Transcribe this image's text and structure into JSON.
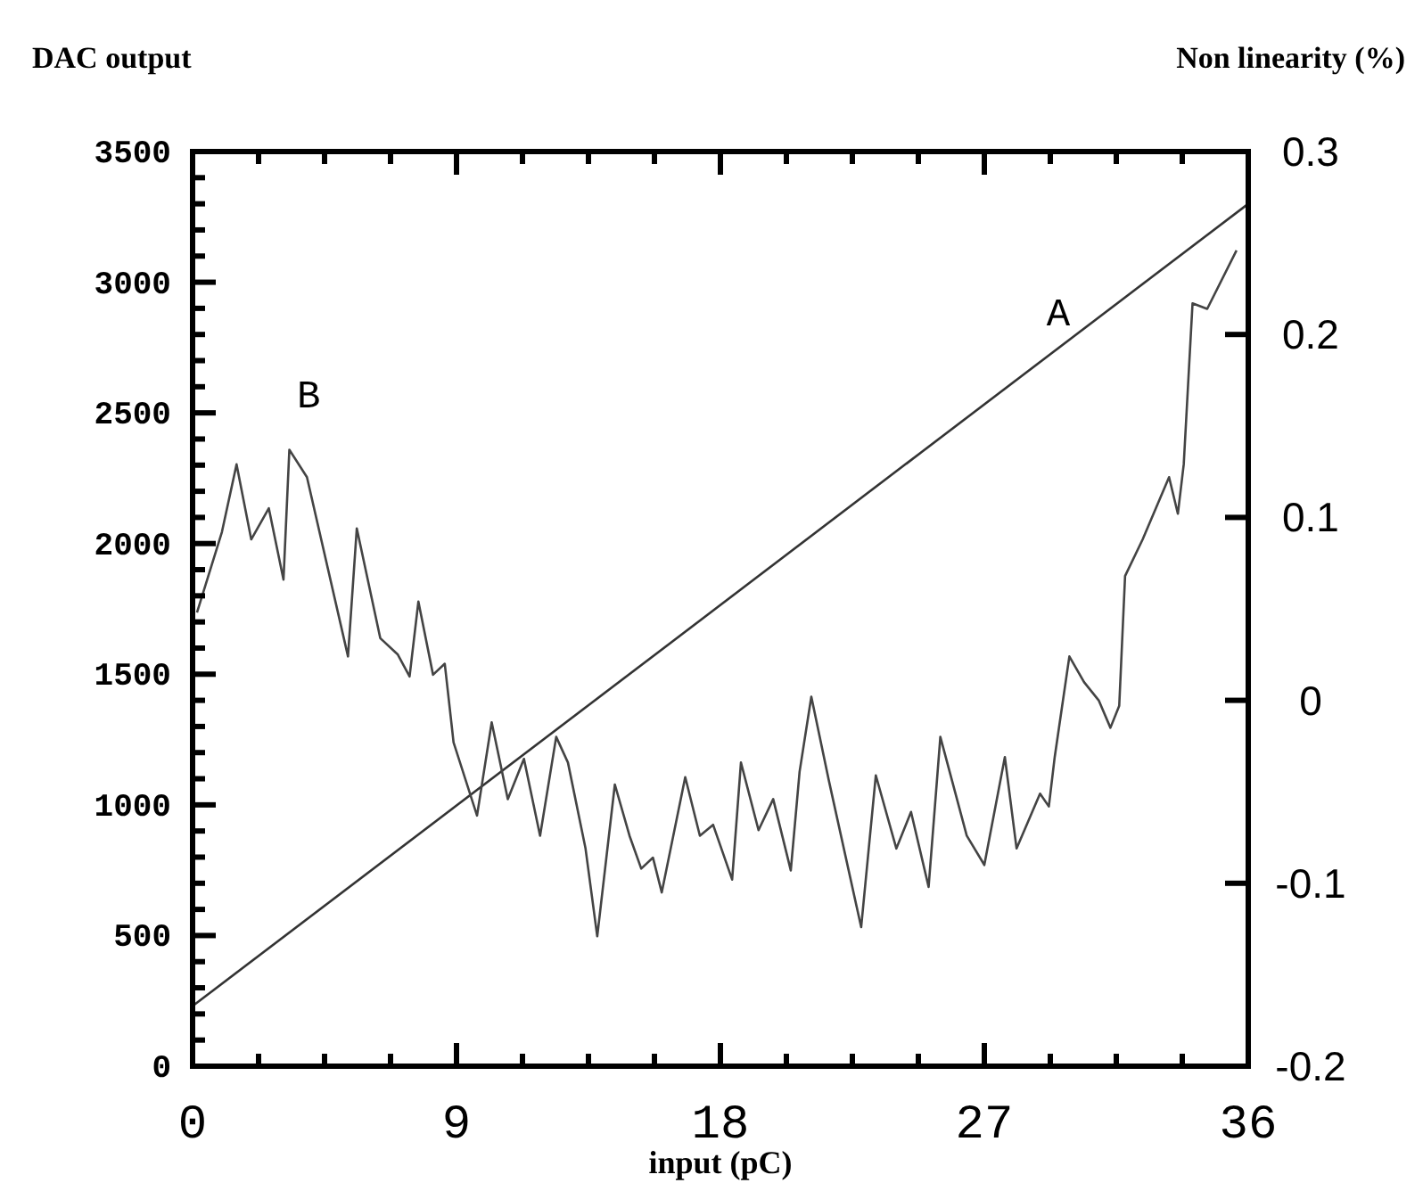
{
  "chart_data": {
    "type": "line",
    "ylabel": "DAC output",
    "y2label": "Non linearity (%)",
    "xlabel": "input (pC)",
    "xlim": [
      0,
      36
    ],
    "xticks": [
      0,
      {
        "value": 2.25,
        "label": null
      },
      {
        "value": 4.5,
        "label": null
      },
      {
        "value": 6.75,
        "label": null
      },
      9,
      {
        "value": 11.25,
        "label": null
      },
      {
        "value": 13.5,
        "label": null
      },
      {
        "value": 15.75,
        "label": null
      },
      18,
      {
        "value": 20.25,
        "label": null
      },
      {
        "value": 22.5,
        "label": null
      },
      {
        "value": 24.75,
        "label": null
      },
      27,
      {
        "value": 29.25,
        "label": null
      },
      {
        "value": 31.5,
        "label": null
      },
      {
        "value": 33.75,
        "label": null
      },
      36
    ],
    "ylim": [
      0,
      3500
    ],
    "yticks": [
      0,
      {
        "value": 100,
        "label": null
      },
      {
        "value": 200,
        "label": null
      },
      {
        "value": 300,
        "label": null
      },
      {
        "value": 400,
        "label": null
      },
      500,
      {
        "value": 600,
        "label": null
      },
      {
        "value": 700,
        "label": null
      },
      {
        "value": 800,
        "label": null
      },
      {
        "value": 900,
        "label": null
      },
      1000,
      {
        "value": 1100,
        "label": null
      },
      {
        "value": 1200,
        "label": null
      },
      {
        "value": 1300,
        "label": null
      },
      {
        "value": 1400,
        "label": null
      },
      1500,
      {
        "value": 1600,
        "label": null
      },
      {
        "value": 1700,
        "label": null
      },
      {
        "value": 1800,
        "label": null
      },
      {
        "value": 1900,
        "label": null
      },
      2000,
      {
        "value": 2100,
        "label": null
      },
      {
        "value": 2200,
        "label": null
      },
      {
        "value": 2300,
        "label": null
      },
      {
        "value": 2400,
        "label": null
      },
      2500,
      {
        "value": 2600,
        "label": null
      },
      {
        "value": 2700,
        "label": null
      },
      {
        "value": 2800,
        "label": null
      },
      {
        "value": 2900,
        "label": null
      },
      3000,
      {
        "value": 3100,
        "label": null
      },
      {
        "value": 3200,
        "label": null
      },
      {
        "value": 3300,
        "label": null
      },
      {
        "value": 3400,
        "label": null
      },
      3500
    ],
    "y2lim": [
      -0.2,
      0.3
    ],
    "y2ticks": [
      -0.2,
      -0.1,
      0,
      0.1,
      0.2,
      0.3
    ],
    "grid": false,
    "line_style": "solid",
    "annotations": [
      "A",
      "B"
    ],
    "series": [
      {
        "color": "#333333",
        "x": [
          0,
          36
        ],
        "values": [
          230,
          3300
        ]
      },
      {
        "color": "#444444",
        "axis": "y2",
        "x": [
          0.15,
          1.0,
          1.5,
          2.0,
          2.6,
          3.1,
          3.3,
          3.9,
          5.3,
          5.6,
          6.4,
          7.0,
          7.4,
          7.7,
          8.2,
          8.6,
          8.9,
          9.7,
          10.2,
          10.75,
          11.3,
          11.85,
          12.4,
          12.8,
          13.4,
          13.8,
          14.4,
          14.9,
          15.3,
          15.7,
          16.0,
          16.8,
          17.3,
          17.75,
          18.4,
          18.7,
          19.3,
          19.8,
          20.4,
          20.7,
          21.1,
          21.7,
          22.8,
          23.3,
          24.0,
          24.5,
          25.1,
          25.5,
          26.4,
          27.0,
          27.7,
          28.1,
          28.9,
          29.2,
          29.4,
          29.9,
          30.4,
          30.9,
          31.3,
          31.6,
          31.8,
          32.4,
          33.3,
          33.6,
          33.8,
          34.1,
          34.6,
          35.6
        ],
        "values": [
          0.048,
          0.092,
          0.129,
          0.088,
          0.105,
          0.066,
          0.137,
          0.122,
          0.024,
          0.094,
          0.034,
          0.025,
          0.013,
          0.054,
          0.014,
          0.02,
          -0.023,
          -0.063,
          -0.012,
          -0.054,
          -0.032,
          -0.074,
          -0.02,
          -0.034,
          -0.081,
          -0.129,
          -0.046,
          -0.074,
          -0.092,
          -0.086,
          -0.105,
          -0.042,
          -0.074,
          -0.068,
          -0.098,
          -0.034,
          -0.071,
          -0.054,
          -0.093,
          -0.039,
          0.002,
          -0.044,
          -0.124,
          -0.041,
          -0.081,
          -0.061,
          -0.102,
          -0.02,
          -0.074,
          -0.09,
          -0.031,
          -0.081,
          -0.051,
          -0.058,
          -0.031,
          0.024,
          0.01,
          0.0,
          -0.015,
          -0.003,
          0.068,
          0.088,
          0.122,
          0.102,
          0.129,
          0.217,
          0.214,
          0.246
        ]
      }
    ]
  }
}
